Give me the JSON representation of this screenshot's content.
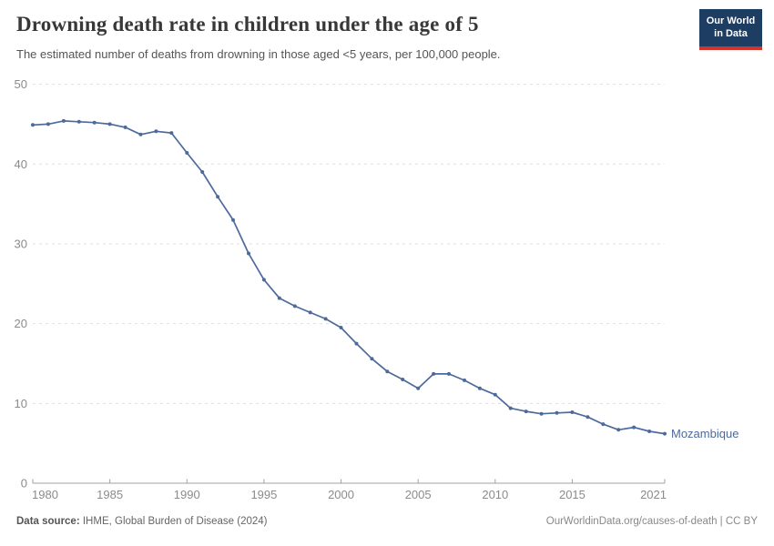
{
  "header": {
    "title": "Drowning death rate in children under the age of 5",
    "subtitle": "The estimated number of deaths from drowning in those aged <5 years, per 100,000 people."
  },
  "logo": {
    "line1": "Our World",
    "line2": "in Data"
  },
  "chart_data": {
    "type": "line",
    "title": "Drowning death rate in children under the age of 5",
    "xlabel": "",
    "ylabel": "",
    "x": [
      1980,
      1981,
      1982,
      1983,
      1984,
      1985,
      1986,
      1987,
      1988,
      1989,
      1990,
      1991,
      1992,
      1993,
      1994,
      1995,
      1996,
      1997,
      1998,
      1999,
      2000,
      2001,
      2002,
      2003,
      2004,
      2005,
      2006,
      2007,
      2008,
      2009,
      2010,
      2011,
      2012,
      2013,
      2014,
      2015,
      2016,
      2017,
      2018,
      2019,
      2020,
      2021
    ],
    "series": [
      {
        "name": "Mozambique",
        "color": "#4c6a9c",
        "values": [
          44.9,
          45.0,
          45.4,
          45.3,
          45.2,
          45.0,
          44.6,
          43.7,
          44.1,
          43.9,
          41.4,
          39.0,
          35.9,
          33.0,
          28.8,
          25.5,
          23.2,
          22.2,
          21.4,
          20.6,
          19.5,
          17.5,
          15.6,
          14.0,
          13.0,
          11.9,
          13.7,
          13.7,
          12.9,
          11.9,
          11.1,
          9.4,
          9.0,
          8.7,
          8.8,
          8.9,
          8.3,
          7.4,
          6.7,
          7.0,
          6.5,
          6.2
        ]
      }
    ],
    "xlim": [
      1980,
      2021
    ],
    "ylim": [
      0,
      50
    ],
    "yticks": [
      0,
      10,
      20,
      30,
      40,
      50
    ],
    "xticks": [
      1980,
      1985,
      1990,
      1995,
      2000,
      2005,
      2010,
      2015,
      2021
    ],
    "grid": "horizontal-dashed",
    "legend": "end-of-line-label"
  },
  "colors": {
    "line": "#4c6a9c",
    "entity_label": "#4c6a9c",
    "grid": "#dedede",
    "axis": "#a1a1a1",
    "tick_label": "#8b8b8b",
    "title": "#383838",
    "subtitle": "#555555",
    "logo_bg": "#1d3d63",
    "logo_bar": "#d0342c"
  },
  "footer": {
    "source_label": "Data source:",
    "source_value": " IHME, Global Burden of Disease (2024)",
    "rights": "OurWorldinData.org/causes-of-death | CC BY"
  }
}
